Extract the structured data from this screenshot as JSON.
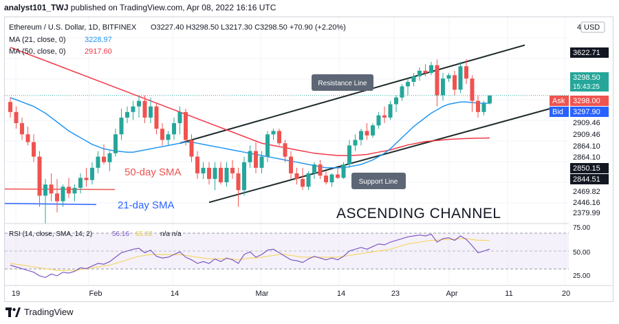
{
  "header": {
    "user": "analyst101_TWJ",
    "published_text": "published on TradingView.com, Apr 08, 2022 16:16 UTC"
  },
  "legend": {
    "symbol": "Ethereum / U.S. Dollar, 1D, BITFINEX",
    "ohlc": "O3227.40  H3298.50  L3217.30  C3298.50  +70.90 (+2.20%)",
    "ma21_label": "MA (21, close, 0)",
    "ma21_value": "3228.97",
    "ma50_label": "MA (50, close, 0)",
    "ma50_value": "2917.60",
    "currency": "USD"
  },
  "annotations": {
    "resistance": "Resistance Line",
    "support": "Support Line",
    "sma50": "50-day SMA",
    "sma21": "21-day SMA",
    "channel": "ASCENDING CHANNEL"
  },
  "price_axis": {
    "tags": [
      {
        "text": "3622.71",
        "bg": "#131722",
        "fg": "#ffffff"
      },
      {
        "text": "3298.50",
        "bg": "#26a69a",
        "fg": "#ffffff",
        "sub": "15:43:25"
      },
      {
        "text": "Ask",
        "val": "3298.00",
        "bg": "#ef5350",
        "fg": "#ffffff"
      },
      {
        "text": "Bid",
        "val": "3297.90",
        "bg": "#2962ff",
        "fg": "#ffffff"
      },
      {
        "text": "2909.46",
        "bg": "#ffffff",
        "fg": "#131722"
      },
      {
        "text": "2909.46",
        "bg": "#ffffff",
        "fg": "#131722"
      },
      {
        "text": "2864.10",
        "bg": "#ffffff",
        "fg": "#131722"
      },
      {
        "text": "2864.10",
        "bg": "#ffffff",
        "fg": "#131722"
      },
      {
        "text": "2850.15",
        "bg": "#131722",
        "fg": "#ffffff"
      },
      {
        "text": "2844.51",
        "bg": "#131722",
        "fg": "#ffffff"
      },
      {
        "text": "2469.82",
        "bg": "#ffffff",
        "fg": "#131722"
      },
      {
        "text": "2446.16",
        "bg": "#ffffff",
        "fg": "#131722"
      },
      {
        "text": "2379.99",
        "bg": "#ffffff",
        "fg": "#131722"
      }
    ]
  },
  "rsi": {
    "label": "RSI (14, close, SMA, 14, 2)",
    "value": "56.16",
    "sma_value": "65.82",
    "na": "n/a  n/a",
    "ticks": [
      "75.00",
      "50.00",
      "25.00"
    ]
  },
  "time_axis": [
    "19",
    "Feb",
    "14",
    "Mar",
    "14",
    "23",
    "Apr",
    "11",
    "20"
  ],
  "footer": {
    "brand": "TradingView"
  },
  "colors": {
    "up": "#26a69a",
    "down": "#ef5350",
    "ma21": "#2196f3",
    "ma50": "#f23645",
    "rsi": "#7e57c2",
    "rsi_sma": "#f5d66b"
  },
  "chart_data": {
    "type": "candlestick",
    "title": "Ethereum / U.S. Dollar, 1D, BITFINEX",
    "ylim": [
      2150,
      4000
    ],
    "candles": [
      [
        3240,
        3280,
        3100,
        3150
      ],
      [
        3150,
        3200,
        3000,
        3050
      ],
      [
        3050,
        3100,
        2900,
        2950
      ],
      [
        2950,
        3020,
        2850,
        2880
      ],
      [
        2880,
        2950,
        2700,
        2750
      ],
      [
        2750,
        2800,
        2300,
        2400
      ],
      [
        2400,
        2550,
        2150,
        2500
      ],
      [
        2500,
        2600,
        2350,
        2420
      ],
      [
        2420,
        2550,
        2250,
        2350
      ],
      [
        2350,
        2500,
        2300,
        2480
      ],
      [
        2480,
        2560,
        2380,
        2420
      ],
      [
        2420,
        2500,
        2350,
        2470
      ],
      [
        2470,
        2600,
        2420,
        2560
      ],
      [
        2560,
        2650,
        2480,
        2540
      ],
      [
        2540,
        2700,
        2500,
        2650
      ],
      [
        2650,
        2800,
        2600,
        2750
      ],
      [
        2750,
        2860,
        2680,
        2700
      ],
      [
        2700,
        2800,
        2620,
        2780
      ],
      [
        2780,
        3000,
        2750,
        2950
      ],
      [
        2950,
        3180,
        2900,
        3100
      ],
      [
        3100,
        3200,
        3050,
        3150
      ],
      [
        3150,
        3250,
        3080,
        3200
      ],
      [
        3200,
        3300,
        3100,
        3250
      ],
      [
        3250,
        3300,
        3050,
        3100
      ],
      [
        3100,
        3280,
        3050,
        3200
      ],
      [
        3200,
        3230,
        2950,
        3000
      ],
      [
        3000,
        3050,
        2850,
        2900
      ],
      [
        2900,
        2980,
        2850,
        2950
      ],
      [
        2950,
        3100,
        2900,
        3050
      ],
      [
        3050,
        3200,
        2950,
        3150
      ],
      [
        3150,
        3180,
        2850,
        2900
      ],
      [
        2900,
        2950,
        2700,
        2750
      ],
      [
        2750,
        2800,
        2550,
        2600
      ],
      [
        2600,
        2700,
        2550,
        2650
      ],
      [
        2650,
        2700,
        2500,
        2550
      ],
      [
        2550,
        2700,
        2450,
        2650
      ],
      [
        2650,
        2700,
        2500,
        2520
      ],
      [
        2520,
        2700,
        2480,
        2650
      ],
      [
        2650,
        2720,
        2550,
        2600
      ],
      [
        2600,
        2650,
        2300,
        2450
      ],
      [
        2450,
        2750,
        2400,
        2700
      ],
      [
        2700,
        2850,
        2650,
        2800
      ],
      [
        2800,
        2880,
        2600,
        2650
      ],
      [
        2650,
        2800,
        2600,
        2750
      ],
      [
        2750,
        2980,
        2700,
        2950
      ],
      [
        2950,
        3000,
        2900,
        2980
      ],
      [
        2980,
        3000,
        2850,
        2870
      ],
      [
        2870,
        2900,
        2700,
        2750
      ],
      [
        2750,
        2800,
        2550,
        2600
      ],
      [
        2600,
        2650,
        2500,
        2550
      ],
      [
        2550,
        2650,
        2450,
        2480
      ],
      [
        2480,
        2620,
        2450,
        2600
      ],
      [
        2600,
        2700,
        2550,
        2680
      ],
      [
        2680,
        2720,
        2550,
        2580
      ],
      [
        2580,
        2620,
        2500,
        2520
      ],
      [
        2520,
        2600,
        2480,
        2590
      ],
      [
        2590,
        2650,
        2550,
        2560
      ],
      [
        2560,
        2700,
        2550,
        2680
      ],
      [
        2680,
        2900,
        2650,
        2850
      ],
      [
        2850,
        2950,
        2800,
        2900
      ],
      [
        2900,
        3000,
        2850,
        2980
      ],
      [
        2980,
        3050,
        2900,
        2940
      ],
      [
        2940,
        3050,
        2920,
        3030
      ],
      [
        3030,
        3150,
        3000,
        3120
      ],
      [
        3120,
        3200,
        3050,
        3100
      ],
      [
        3100,
        3250,
        3080,
        3220
      ],
      [
        3220,
        3300,
        3150,
        3280
      ],
      [
        3280,
        3400,
        3250,
        3380
      ],
      [
        3380,
        3450,
        3300,
        3420
      ],
      [
        3420,
        3500,
        3380,
        3470
      ],
      [
        3470,
        3550,
        3430,
        3520
      ],
      [
        3520,
        3580,
        3470,
        3500
      ],
      [
        3500,
        3600,
        3480,
        3570
      ],
      [
        3570,
        3620,
        3200,
        3300
      ],
      [
        3300,
        3500,
        3250,
        3450
      ],
      [
        3450,
        3500,
        3420,
        3480
      ],
      [
        3480,
        3520,
        3300,
        3350
      ],
      [
        3350,
        3600,
        3320,
        3560
      ],
      [
        3560,
        3622,
        3400,
        3450
      ],
      [
        3450,
        3480,
        3150,
        3250
      ],
      [
        3250,
        3300,
        3100,
        3150
      ],
      [
        3150,
        3250,
        3120,
        3227
      ],
      [
        3227,
        3298,
        3217,
        3298
      ]
    ],
    "ma21": [
      3280,
      3260,
      3240,
      3220,
      3200,
      3170,
      3140,
      3100,
      3060,
      3020,
      2980,
      2950,
      2920,
      2890,
      2860,
      2840,
      2820,
      2810,
      2800,
      2795,
      2790,
      2790,
      2800,
      2810,
      2820,
      2830,
      2840,
      2850,
      2860,
      2870,
      2880,
      2880,
      2870,
      2860,
      2850,
      2840,
      2830,
      2820,
      2810,
      2800,
      2790,
      2780,
      2770,
      2760,
      2750,
      2740,
      2730,
      2720,
      2710,
      2700,
      2690,
      2680,
      2670,
      2660,
      2650,
      2650,
      2650,
      2650,
      2660,
      2670,
      2680,
      2700,
      2720,
      2750,
      2780,
      2820,
      2870,
      2920,
      2970,
      3020,
      3060,
      3100,
      3140,
      3170,
      3200,
      3220,
      3230,
      3240,
      3240,
      3235,
      3230,
      3229,
      3229
    ],
    "ma50": [
      3730,
      3710,
      3690,
      3670,
      3650,
      3630,
      3610,
      3590,
      3570,
      3550,
      3530,
      3510,
      3490,
      3470,
      3450,
      3430,
      3410,
      3390,
      3370,
      3350,
      3330,
      3310,
      3290,
      3270,
      3250,
      3230,
      3210,
      3190,
      3170,
      3150,
      3130,
      3110,
      3090,
      3070,
      3050,
      3030,
      3010,
      2990,
      2970,
      2950,
      2930,
      2910,
      2890,
      2870,
      2860,
      2850,
      2840,
      2830,
      2820,
      2810,
      2800,
      2790,
      2780,
      2775,
      2770,
      2765,
      2760,
      2760,
      2760,
      2762,
      2765,
      2770,
      2780,
      2790,
      2800,
      2810,
      2825,
      2840,
      2855,
      2865,
      2875,
      2885,
      2890,
      2895,
      2900,
      2905,
      2908,
      2910,
      2912,
      2914,
      2915,
      2916,
      2917.6
    ],
    "rsi": [
      38,
      36,
      34,
      32,
      30,
      26,
      24,
      28,
      26,
      30,
      29,
      31,
      35,
      34,
      37,
      40,
      39,
      42,
      47,
      52,
      54,
      56,
      57,
      52,
      55,
      48,
      46,
      47,
      50,
      53,
      47,
      44,
      40,
      42,
      40,
      45,
      42,
      46,
      44,
      40,
      50,
      53,
      47,
      50,
      55,
      56,
      52,
      48,
      44,
      43,
      41,
      45,
      48,
      46,
      44,
      46,
      44,
      48,
      54,
      56,
      58,
      56,
      59,
      62,
      61,
      64,
      66,
      68,
      70,
      71,
      72,
      71,
      73,
      64,
      68,
      69,
      66,
      71,
      67,
      60,
      52,
      54,
      56.16
    ],
    "rsi_sma": [
      40,
      39,
      38,
      37,
      36,
      35,
      34,
      33,
      32,
      32,
      32,
      32,
      33,
      34,
      35,
      36,
      37,
      38,
      40,
      42,
      44,
      46,
      48,
      49,
      50,
      50,
      50,
      50,
      50,
      50,
      49,
      48,
      47,
      46,
      45,
      45,
      45,
      45,
      45,
      44,
      45,
      46,
      46,
      47,
      48,
      49,
      50,
      50,
      49,
      48,
      47,
      47,
      47,
      47,
      47,
      47,
      47,
      48,
      49,
      50,
      51,
      52,
      53,
      54,
      55,
      56,
      58,
      60,
      62,
      63,
      64,
      65,
      66,
      66,
      67,
      67,
      67,
      68,
      68,
      67,
      66,
      66,
      65.82
    ],
    "rsi_ylim": [
      15,
      85
    ],
    "channel": {
      "upper": [
        [
          29,
          2870
        ],
        [
          88,
          3750
        ]
      ],
      "lower": [
        [
          34,
          2340
        ],
        [
          93,
          3190
        ]
      ]
    },
    "sma_ref_lines": {
      "sma50": [
        [
          0,
          2460
        ],
        [
          18,
          2455
        ]
      ],
      "sma21": [
        [
          0,
          2330
        ],
        [
          15,
          2320
        ]
      ]
    }
  }
}
